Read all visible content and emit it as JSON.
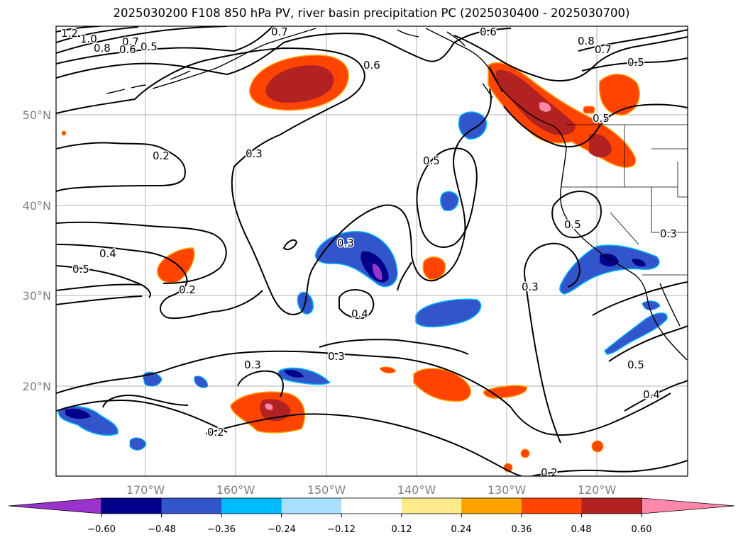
{
  "title": "2025030200 F108 850 hPa PV, river basin precipitation PC (2025030400 - 2025030700)",
  "axes": {
    "lat_labels": [
      "50°N",
      "40°N",
      "30°N",
      "20°N"
    ],
    "lon_labels": [
      "170°W",
      "160°W",
      "150°W",
      "140°W",
      "130°W",
      "120°W"
    ]
  },
  "colorbar": {
    "tick_labels": [
      "−0.60",
      "−0.48",
      "−0.36",
      "−0.24",
      "−0.12",
      "0.12",
      "0.24",
      "0.36",
      "0.48",
      "0.60"
    ],
    "bins": [
      "#9933CC",
      "#00008B",
      "#3355CC",
      "#00BBFF",
      "#AAE0FF",
      "#FFFFFF",
      "#FFE98A",
      "#FFA200",
      "#FF4400",
      "#B22222",
      "#FF88AA"
    ],
    "under_color": "#9933CC",
    "over_color": "#FF88AA"
  },
  "contour_labels": [
    "1.2",
    "1.0",
    "0.8",
    "0.7",
    "0.6",
    "0.5",
    "0.7",
    "0.6",
    "0.6",
    "0.8",
    "0.7",
    "0.5",
    "0.5",
    "0.3",
    "0.2",
    "0.5",
    "0.4",
    "0.5",
    "0.2",
    "0.3",
    "0.4",
    "0.3",
    "0.3",
    "0.3",
    "0.5",
    "0.3",
    "0.2",
    "0.5",
    "0.4",
    "0.2"
  ]
}
